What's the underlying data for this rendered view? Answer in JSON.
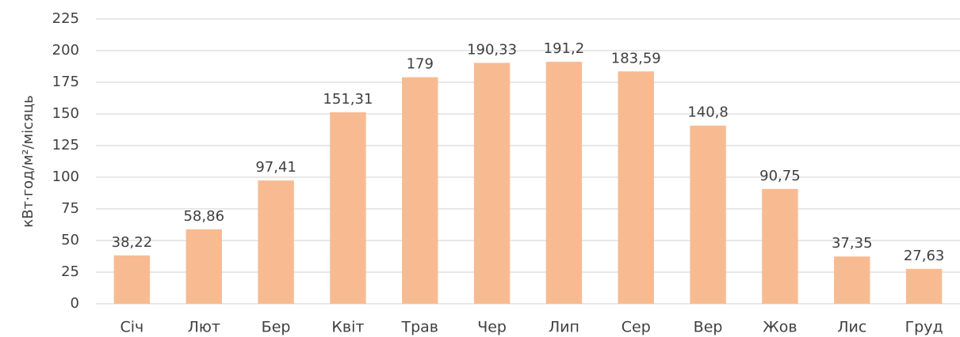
{
  "chart_data": {
    "type": "bar",
    "y_label": "кВт·год/м²/місяць",
    "categories": [
      "Січ",
      "Лют",
      "Бер",
      "Квіт",
      "Трав",
      "Чер",
      "Лип",
      "Сер",
      "Вер",
      "Жов",
      "Лис",
      "Груд"
    ],
    "values": [
      38.22,
      58.86,
      97.41,
      151.31,
      179,
      190.33,
      191.2,
      183.59,
      140.8,
      90.75,
      37.35,
      27.63
    ],
    "value_labels": [
      "38,22",
      "58,86",
      "97,41",
      "151,31",
      "179",
      "190,33",
      "191,2",
      "183,59",
      "140,8",
      "90,75",
      "37,35",
      "27,63"
    ],
    "color": "#f8bb91",
    "ylim": [
      0,
      225
    ],
    "yticks": [
      0,
      25,
      50,
      75,
      100,
      125,
      150,
      175,
      200,
      225
    ],
    "grid": true
  }
}
